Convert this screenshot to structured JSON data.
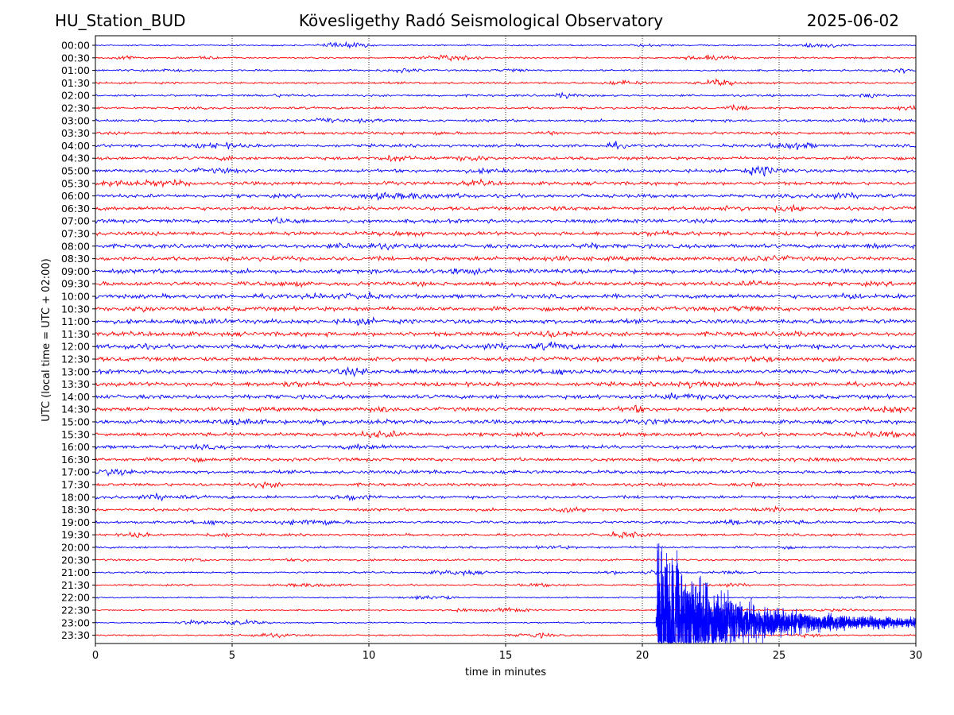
{
  "header": {
    "station": "HU_Station_BUD",
    "observatory": "Kövesligethy Radó Seismological Observatory",
    "date": "2025-06-02"
  },
  "chart_data": {
    "type": "line",
    "title": "Kövesligethy Radó Seismological Observatory",
    "xlabel": "time in minutes",
    "ylabel": "UTC (local time = UTC + 02:00)",
    "xlim": [
      0,
      30
    ],
    "xticks": [
      "0",
      "5",
      "10",
      "15",
      "20",
      "25",
      "30"
    ],
    "grid": "vertical-dotted",
    "row_labels": [
      "00:00",
      "00:30",
      "01:00",
      "01:30",
      "02:00",
      "02:30",
      "03:00",
      "03:30",
      "04:00",
      "04:30",
      "05:00",
      "05:30",
      "06:00",
      "06:30",
      "07:00",
      "07:30",
      "08:00",
      "08:30",
      "09:00",
      "09:30",
      "10:00",
      "10:30",
      "11:00",
      "11:30",
      "12:00",
      "12:30",
      "13:00",
      "13:30",
      "14:00",
      "14:30",
      "15:00",
      "15:30",
      "16:00",
      "16:30",
      "17:00",
      "17:30",
      "18:00",
      "18:30",
      "19:00",
      "19:30",
      "20:00",
      "20:30",
      "21:00",
      "21:30",
      "22:00",
      "22:30",
      "23:00",
      "23:30"
    ],
    "colors": {
      "even_rows": "#0000ff",
      "odd_rows": "#ff0000"
    },
    "event": {
      "onset_minute": 20.5,
      "row": "23:00",
      "description_shown": false
    }
  }
}
